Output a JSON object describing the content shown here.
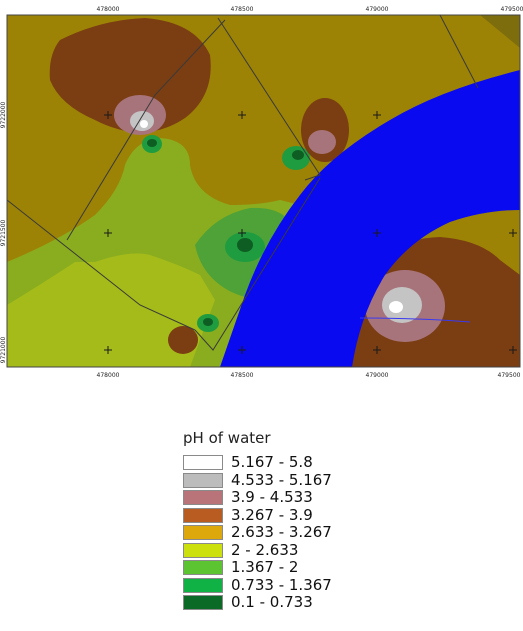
{
  "map": {
    "x_ticks": [
      "478000",
      "478500",
      "479000",
      "479500"
    ],
    "y_ticks": [
      "9722000",
      "9721500",
      "9721000"
    ],
    "colors": {
      "background": "#9c8306",
      "dark_brown": "#7b3d12",
      "pink": "#a8747b",
      "grey": "#c4c4c4",
      "white": "#ffffff",
      "light_green": "#8aad1f",
      "yellow_green": "#bac716",
      "mid_green": "#4fa237",
      "green": "#1f9c3f",
      "dark_green": "#0e5e24",
      "water": "#0a0af0",
      "line": "#3a3a3a"
    }
  },
  "legend": {
    "title": "pH of water",
    "items": [
      {
        "label": "5.167 - 5.8",
        "color": "#ffffff"
      },
      {
        "label": "4.533 - 5.167",
        "color": "#bcbcbc"
      },
      {
        "label": "3.9 - 4.533",
        "color": "#b87478"
      },
      {
        "label": "3.267 - 3.9",
        "color": "#b95c22"
      },
      {
        "label": "2.633 - 3.267",
        "color": "#dca80c"
      },
      {
        "label": "2 - 2.633",
        "color": "#cbe00c"
      },
      {
        "label": "1.367 - 2",
        "color": "#5cc431"
      },
      {
        "label": "0.733 - 1.367",
        "color": "#10b246"
      },
      {
        "label": "0.1 - 0.733",
        "color": "#0b6b26"
      }
    ]
  }
}
